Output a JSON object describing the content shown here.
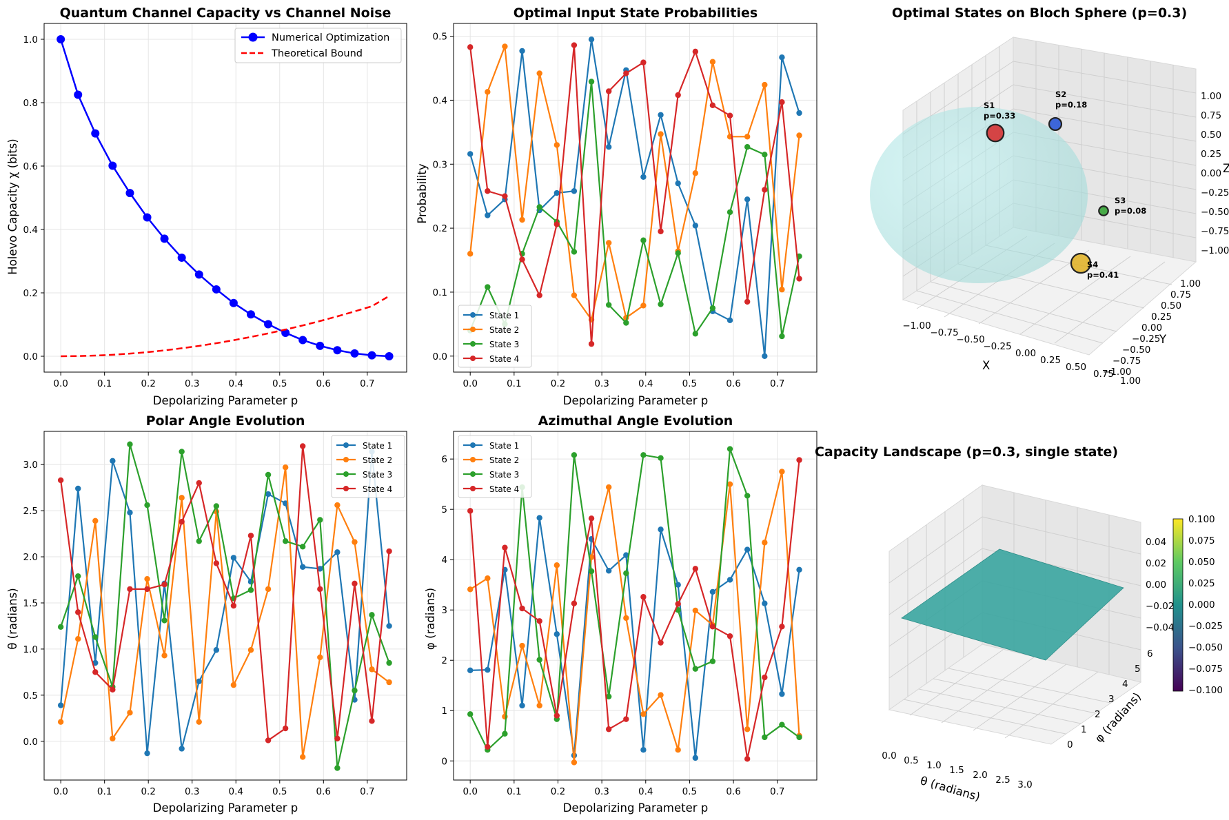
{
  "chart_data": [
    {
      "id": "capacity",
      "type": "line",
      "title": "Quantum Channel Capacity vs Channel Noise",
      "xlabel": "Depolarizing Parameter p",
      "ylabel": "Holevo Capacity χ (bits)",
      "xlim": [
        -0.038,
        0.79
      ],
      "ylim": [
        -0.05,
        1.05
      ],
      "xticks": [
        0.0,
        0.1,
        0.2,
        0.3,
        0.4,
        0.5,
        0.6,
        0.7
      ],
      "xtick_labels": [
        "0.0",
        "0.1",
        "0.2",
        "0.3",
        "0.4",
        "0.5",
        "0.6",
        "0.7"
      ],
      "yticks": [
        0.0,
        0.2,
        0.4,
        0.6,
        0.8,
        1.0
      ],
      "ytick_labels": [
        "0.0",
        "0.2",
        "0.4",
        "0.6",
        "0.8",
        "1.0"
      ],
      "legend_position": "top-right",
      "x": [
        0.0,
        0.0395,
        0.0789,
        0.1184,
        0.1579,
        0.1974,
        0.2368,
        0.2763,
        0.3158,
        0.3553,
        0.3947,
        0.4342,
        0.4737,
        0.5132,
        0.5526,
        0.5921,
        0.6316,
        0.6711,
        0.7105,
        0.75
      ],
      "series": [
        {
          "name": "Numerical Optimization",
          "color": "#0000ff",
          "style": "line-markers",
          "values": [
            1.0,
            0.825,
            0.703,
            0.601,
            0.515,
            0.438,
            0.371,
            0.311,
            0.258,
            0.211,
            0.168,
            0.132,
            0.101,
            0.074,
            0.051,
            0.033,
            0.019,
            0.009,
            0.003,
            0.0
          ]
        },
        {
          "name": "Theoretical Bound",
          "color": "#ff0000",
          "style": "dashed",
          "values": [
            0.0,
            0.0006,
            0.0021,
            0.0047,
            0.0083,
            0.0129,
            0.0186,
            0.0252,
            0.0327,
            0.0412,
            0.0506,
            0.0609,
            0.0721,
            0.0842,
            0.0972,
            0.1111,
            0.1258,
            0.1414,
            0.1579,
            0.19
          ]
        }
      ]
    },
    {
      "id": "probabilities",
      "type": "line",
      "title": "Optimal Input State Probabilities",
      "xlabel": "Depolarizing Parameter p",
      "ylabel": "Probability",
      "xlim": [
        -0.038,
        0.79
      ],
      "ylim": [
        -0.025,
        0.52
      ],
      "xticks": [
        0.0,
        0.1,
        0.2,
        0.3,
        0.4,
        0.5,
        0.6,
        0.7
      ],
      "xtick_labels": [
        "0.0",
        "0.1",
        "0.2",
        "0.3",
        "0.4",
        "0.5",
        "0.6",
        "0.7"
      ],
      "yticks": [
        0.0,
        0.1,
        0.2,
        0.3,
        0.4,
        0.5
      ],
      "ytick_labels": [
        "0.0",
        "0.1",
        "0.2",
        "0.3",
        "0.4",
        "0.5"
      ],
      "legend_position": "bottom-left",
      "x": [
        0.0,
        0.0395,
        0.0789,
        0.1184,
        0.1579,
        0.1974,
        0.2368,
        0.2763,
        0.3158,
        0.3553,
        0.3947,
        0.4342,
        0.4737,
        0.5132,
        0.5526,
        0.5921,
        0.6316,
        0.6711,
        0.7105,
        0.75
      ],
      "series": [
        {
          "name": "State 1",
          "color": "#1f77b4",
          "values": [
            0.316,
            0.22,
            0.245,
            0.477,
            0.228,
            0.255,
            0.258,
            0.495,
            0.327,
            0.447,
            0.28,
            0.377,
            0.27,
            0.204,
            0.07,
            0.056,
            0.245,
            0.0,
            0.467,
            0.38
          ]
        },
        {
          "name": "State 2",
          "color": "#ff7f0e",
          "values": [
            0.16,
            0.413,
            0.484,
            0.213,
            0.442,
            0.33,
            0.095,
            0.057,
            0.177,
            0.06,
            0.079,
            0.347,
            0.164,
            0.286,
            0.46,
            0.343,
            0.343,
            0.424,
            0.104,
            0.345
          ]
        },
        {
          "name": "State 3",
          "color": "#2ca02c",
          "values": [
            0.04,
            0.108,
            0.05,
            0.16,
            0.233,
            0.21,
            0.163,
            0.429,
            0.08,
            0.052,
            0.181,
            0.081,
            0.161,
            0.035,
            0.075,
            0.225,
            0.327,
            0.315,
            0.031,
            0.156
          ]
        },
        {
          "name": "State 4",
          "color": "#d62728",
          "values": [
            0.483,
            0.258,
            0.25,
            0.151,
            0.095,
            0.206,
            0.486,
            0.019,
            0.414,
            0.442,
            0.459,
            0.195,
            0.408,
            0.476,
            0.392,
            0.376,
            0.085,
            0.26,
            0.397,
            0.121
          ]
        }
      ]
    },
    {
      "id": "bloch",
      "type": "scatter",
      "title": "Optimal States on Bloch Sphere (p=0.3)",
      "xlabel": "X",
      "ylabel": "Y",
      "zlabel": "Z",
      "xlim": [
        -1.0,
        1.0
      ],
      "ylim": [
        -1.0,
        1.0
      ],
      "zlim": [
        -1.0,
        1.0
      ],
      "xtick_labels": [
        "−1.00",
        "−0.75",
        "−0.50",
        "−0.25",
        "0.00",
        "0.25",
        "0.50",
        "0.75",
        "1.00"
      ],
      "ytick_labels": [
        "−1.00",
        "−0.75",
        "−0.50",
        "−0.25",
        "0.00",
        "0.25",
        "0.50",
        "0.75",
        "1.00"
      ],
      "ztick_labels": [
        "−1.00",
        "−0.75",
        "−0.50",
        "−0.25",
        "0.00",
        "0.25",
        "0.50",
        "0.75",
        "1.00"
      ],
      "sphere_color": "#a0e6e6",
      "points": [
        {
          "label": "S1",
          "prob_label": "p=0.33",
          "probability": 0.33,
          "color": "#d62728"
        },
        {
          "label": "S2",
          "prob_label": "p=0.18",
          "probability": 0.18,
          "color": "#1f4fd6"
        },
        {
          "label": "S3",
          "prob_label": "p=0.08",
          "probability": 0.08,
          "color": "#2ca02c"
        },
        {
          "label": "S4",
          "prob_label": "p=0.41",
          "probability": 0.41,
          "color": "#e0b020"
        }
      ]
    },
    {
      "id": "polar",
      "type": "line",
      "title": "Polar Angle Evolution",
      "xlabel": "Depolarizing Parameter p",
      "ylabel": "θ (radians)",
      "xlim": [
        -0.038,
        0.79
      ],
      "ylim": [
        -0.42,
        3.36
      ],
      "xticks": [
        0.0,
        0.1,
        0.2,
        0.3,
        0.4,
        0.5,
        0.6,
        0.7
      ],
      "xtick_labels": [
        "0.0",
        "0.1",
        "0.2",
        "0.3",
        "0.4",
        "0.5",
        "0.6",
        "0.7"
      ],
      "yticks": [
        0.0,
        0.5,
        1.0,
        1.5,
        2.0,
        2.5,
        3.0
      ],
      "ytick_labels": [
        "0.0",
        "0.5",
        "1.0",
        "1.5",
        "2.0",
        "2.5",
        "3.0"
      ],
      "legend_position": "top-right",
      "x": [
        0.0,
        0.0395,
        0.0789,
        0.1184,
        0.1579,
        0.1974,
        0.2368,
        0.2763,
        0.3158,
        0.3553,
        0.3947,
        0.4342,
        0.4737,
        0.5132,
        0.5526,
        0.5921,
        0.6316,
        0.6711,
        0.7105,
        0.75
      ],
      "series": [
        {
          "name": "State 1",
          "color": "#1f77b4",
          "values": [
            0.39,
            2.74,
            0.85,
            3.04,
            2.48,
            -0.13,
            1.71,
            -0.08,
            0.65,
            0.99,
            1.99,
            1.73,
            2.68,
            2.58,
            1.89,
            1.87,
            2.05,
            0.45,
            3.14,
            1.25
          ]
        },
        {
          "name": "State 2",
          "color": "#ff7f0e",
          "values": [
            0.21,
            1.11,
            2.39,
            0.03,
            0.31,
            1.76,
            0.93,
            2.64,
            0.21,
            2.49,
            0.61,
            0.99,
            1.65,
            2.97,
            -0.17,
            0.91,
            2.56,
            2.16,
            0.78,
            0.64
          ]
        },
        {
          "name": "State 3",
          "color": "#2ca02c",
          "values": [
            1.24,
            1.79,
            1.13,
            0.59,
            3.22,
            2.56,
            1.31,
            3.14,
            2.17,
            2.55,
            1.55,
            1.64,
            2.89,
            2.17,
            2.11,
            2.4,
            -0.29,
            0.55,
            1.37,
            0.85
          ]
        },
        {
          "name": "State 4",
          "color": "#d62728",
          "values": [
            2.83,
            1.4,
            0.75,
            0.56,
            1.65,
            1.65,
            1.7,
            2.38,
            2.8,
            1.93,
            1.47,
            2.23,
            0.01,
            0.14,
            3.2,
            1.65,
            0.03,
            1.71,
            0.22,
            2.06
          ]
        }
      ]
    },
    {
      "id": "azimuthal",
      "type": "line",
      "title": "Azimuthal Angle Evolution",
      "xlabel": "Depolarizing Parameter p",
      "ylabel": "φ (radians)",
      "xlim": [
        -0.038,
        0.79
      ],
      "ylim": [
        -0.38,
        6.55
      ],
      "xticks": [
        0.0,
        0.1,
        0.2,
        0.3,
        0.4,
        0.5,
        0.6,
        0.7
      ],
      "xtick_labels": [
        "0.0",
        "0.1",
        "0.2",
        "0.3",
        "0.4",
        "0.5",
        "0.6",
        "0.7"
      ],
      "yticks": [
        0,
        1,
        2,
        3,
        4,
        5,
        6
      ],
      "ytick_labels": [
        "0",
        "1",
        "2",
        "3",
        "4",
        "5",
        "6"
      ],
      "legend_position": "top-left",
      "x": [
        0.0,
        0.0395,
        0.0789,
        0.1184,
        0.1579,
        0.1974,
        0.2368,
        0.2763,
        0.3158,
        0.3553,
        0.3947,
        0.4342,
        0.4737,
        0.5132,
        0.5526,
        0.5921,
        0.6316,
        0.6711,
        0.7105,
        0.75
      ],
      "series": [
        {
          "name": "State 1",
          "color": "#1f77b4",
          "values": [
            1.8,
            1.81,
            3.8,
            1.1,
            4.83,
            2.52,
            0.11,
            4.41,
            3.78,
            4.09,
            0.22,
            4.6,
            3.5,
            0.06,
            3.36,
            3.6,
            4.2,
            3.13,
            1.33,
            3.8
          ]
        },
        {
          "name": "State 2",
          "color": "#ff7f0e",
          "values": [
            3.41,
            3.63,
            0.88,
            2.29,
            1.1,
            3.89,
            -0.03,
            4.05,
            5.44,
            2.84,
            0.93,
            1.31,
            0.22,
            2.99,
            2.7,
            5.5,
            0.63,
            4.34,
            5.75,
            0.5
          ]
        },
        {
          "name": "State 3",
          "color": "#2ca02c",
          "values": [
            0.93,
            0.22,
            0.54,
            5.44,
            2.01,
            0.83,
            6.08,
            3.77,
            1.28,
            3.73,
            6.08,
            6.02,
            3.0,
            1.83,
            1.98,
            6.2,
            5.27,
            0.47,
            0.72,
            0.47
          ]
        },
        {
          "name": "State 4",
          "color": "#d62728",
          "values": [
            4.97,
            0.28,
            4.24,
            3.03,
            2.78,
            0.9,
            3.13,
            4.82,
            0.63,
            0.83,
            3.26,
            2.35,
            3.12,
            3.82,
            2.67,
            2.48,
            0.04,
            1.66,
            2.67,
            5.98
          ]
        }
      ]
    },
    {
      "id": "landscape",
      "type": "heatmap",
      "title": "Capacity Landscape (p=0.3, single state)",
      "xlabel": "θ (radians)",
      "ylabel": "φ (radians)",
      "surface_value": 0.0,
      "surface_color": "#3aa5a0",
      "xtick_labels": [
        "0.0",
        "0.5",
        "1.0",
        "1.5",
        "2.0",
        "2.5",
        "3.0"
      ],
      "ytick_labels": [
        "0",
        "1",
        "2",
        "3",
        "4",
        "5",
        "6"
      ],
      "ztick_labels": [
        "−0.04",
        "−0.02",
        "0.00",
        "0.02",
        "0.04"
      ],
      "colorbar_range": [
        -0.1,
        0.1
      ],
      "colorbar_ticks": [
        "0.100",
        "0.075",
        "0.050",
        "0.025",
        "0.000",
        "−0.025",
        "−0.050",
        "−0.075",
        "−0.100"
      ]
    }
  ]
}
